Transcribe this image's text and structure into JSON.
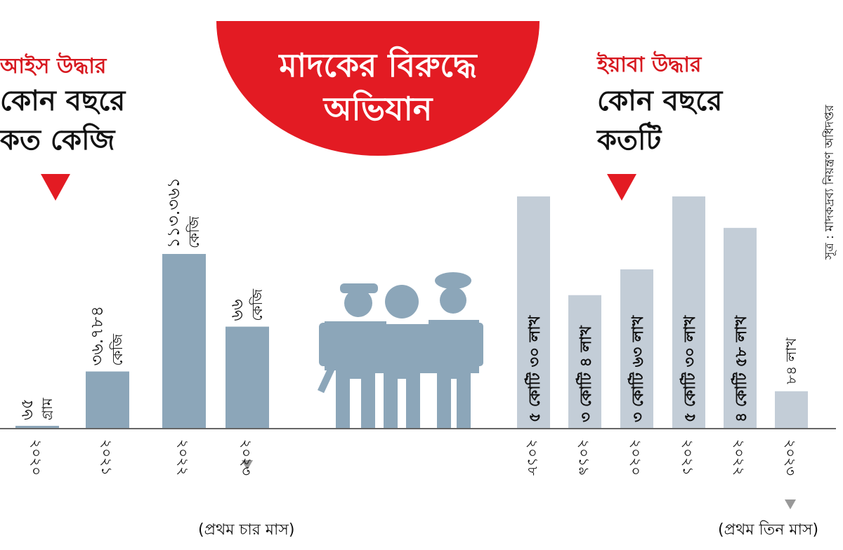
{
  "banner": {
    "line1": "মাদকের বিরুদ্ধে",
    "line2": "অভিযান",
    "color": "#e31b23"
  },
  "source": "সূত্র : মাদকদ্রব্য নিয়ন্ত্রণ অধিদপ্তর",
  "chart_data": [
    {
      "type": "bar",
      "title": "আইস উদ্ধার",
      "subtitle_line1": "কোন বছরে",
      "subtitle_line2": "কত কেজি",
      "categories": [
        "২০২০",
        "২০২১",
        "২০২২",
        "২০২৩"
      ],
      "values_kg": [
        0.065,
        36.784,
        113.361,
        66
      ],
      "data_labels": [
        {
          "value": "৬৫",
          "unit": "গ্রাম"
        },
        {
          "value": "৩৬.৭৮৪",
          "unit": "কেজি"
        },
        {
          "value": "১১৩.৩৬১",
          "unit": "কেজি"
        },
        {
          "value": "৬৬",
          "unit": "কেজি"
        }
      ],
      "note": "(প্রথম চার মাস)",
      "bar_color": "#8ca6b9"
    },
    {
      "type": "bar",
      "title": "ইয়াবা উদ্ধার",
      "subtitle_line1": "কোন বছরে",
      "subtitle_line2": "কতটি",
      "categories": [
        "২০১৮",
        "২০১৯",
        "২০২০",
        "২০২১",
        "২০২২",
        "২০২৩"
      ],
      "values_lakh": [
        530,
        304,
        363,
        530,
        458,
        84
      ],
      "data_labels": [
        "৫ কোটি ৩০ লাখ",
        "৩ কোটি ৪ লাখ",
        "৩ কোটি ৬৩ লাখ",
        "৫ কোটি ৩০ লাখ",
        "৪ কোটি ৫৮ লাখ",
        "৮৪ লাখ"
      ],
      "note": "(প্রথম তিন মাস)",
      "bar_color": "#c3cdd7"
    }
  ],
  "accent_color": "#e31b23",
  "icons": [
    "red-triangle-icon",
    "police-and-arrestee-icon",
    "grey-triangle-icon"
  ]
}
